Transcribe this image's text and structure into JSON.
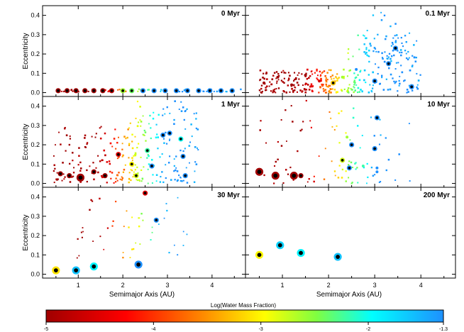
{
  "figure": {
    "ylabel": "Eccentricity",
    "xlabel": "Semimajor Axis (AU)",
    "colorbar_label": "Log(Water Mass Fraction)",
    "colorbar_ticks": [
      "-5",
      "-4",
      "-3",
      "-2",
      "-1.3"
    ],
    "colorbar_colors": [
      "#a00000",
      "#ff0000",
      "#ff7f00",
      "#ffff00",
      "#80ff40",
      "#00ffff",
      "#1e90ff"
    ]
  },
  "chart_data": [
    {
      "type": "scatter",
      "title": "0 Myr",
      "xlim": [
        0.2,
        4.75
      ],
      "ylim": [
        -0.02,
        0.45
      ],
      "xticks": [
        "1",
        "2",
        "3",
        "4"
      ],
      "yticks": [
        "0.0",
        "0.1",
        "0.2",
        "0.3",
        "0.4"
      ],
      "points": [
        {
          "a": 0.55,
          "e": 0.01,
          "s": 2,
          "w": -5
        },
        {
          "a": 0.75,
          "e": 0.01,
          "s": 2,
          "w": -5
        },
        {
          "a": 0.95,
          "e": 0.01,
          "s": 2,
          "w": -5
        },
        {
          "a": 1.15,
          "e": 0.01,
          "s": 2,
          "w": -5
        },
        {
          "a": 1.35,
          "e": 0.01,
          "s": 2,
          "w": -5
        },
        {
          "a": 1.55,
          "e": 0.01,
          "s": 2,
          "w": -5
        },
        {
          "a": 1.75,
          "e": 0.01,
          "s": 2,
          "w": -4.8
        },
        {
          "a": 2.0,
          "e": 0.01,
          "s": 2,
          "w": -2.6
        },
        {
          "a": 2.2,
          "e": 0.01,
          "s": 2,
          "w": -2.4
        },
        {
          "a": 2.45,
          "e": 0.01,
          "s": 2,
          "w": -1.3
        },
        {
          "a": 2.7,
          "e": 0.01,
          "s": 2,
          "w": -1.3
        },
        {
          "a": 2.95,
          "e": 0.01,
          "s": 2,
          "w": -1.3
        },
        {
          "a": 3.2,
          "e": 0.01,
          "s": 2,
          "w": -1.3
        },
        {
          "a": 3.45,
          "e": 0.01,
          "s": 2,
          "w": -1.3
        },
        {
          "a": 3.7,
          "e": 0.01,
          "s": 2,
          "w": -1.3
        },
        {
          "a": 3.95,
          "e": 0.01,
          "s": 2,
          "w": -1.3
        },
        {
          "a": 4.2,
          "e": 0.01,
          "s": 2,
          "w": -1.3
        },
        {
          "a": 4.45,
          "e": 0.01,
          "s": 2,
          "w": -1.3
        }
      ]
    },
    {
      "type": "scatter",
      "title": "0.1 Myr",
      "xlim": [
        0.2,
        4.75
      ],
      "ylim": [
        -0.02,
        0.45
      ],
      "xticks": [
        "1",
        "2",
        "3",
        "4"
      ],
      "yticks": [
        "0.0",
        "0.1",
        "0.2",
        "0.3",
        "0.4"
      ],
      "points": [
        {
          "a": 0.6,
          "e": 0.05,
          "s": 1,
          "w": -5
        },
        {
          "a": 0.9,
          "e": 0.08,
          "s": 1,
          "w": -5
        },
        {
          "a": 1.2,
          "e": 0.04,
          "s": 1,
          "w": -5
        },
        {
          "a": 1.5,
          "e": 0.09,
          "s": 1,
          "w": -5
        },
        {
          "a": 1.8,
          "e": 0.06,
          "s": 1,
          "w": -4.6
        },
        {
          "a": 2.1,
          "e": 0.05,
          "s": 2,
          "w": -3.2
        },
        {
          "a": 2.3,
          "e": 0.08,
          "s": 1,
          "w": -2.6
        },
        {
          "a": 2.6,
          "e": 0.12,
          "s": 1,
          "w": -1.3
        },
        {
          "a": 3.0,
          "e": 0.06,
          "s": 2,
          "w": -1.3
        },
        {
          "a": 3.3,
          "e": 0.15,
          "s": 2,
          "w": -1.3
        },
        {
          "a": 3.45,
          "e": 0.23,
          "s": 2,
          "w": -1.3
        },
        {
          "a": 3.8,
          "e": 0.03,
          "s": 2,
          "w": -1.3
        }
      ]
    },
    {
      "type": "scatter",
      "title": "1 Myr",
      "xlim": [
        0.2,
        4.75
      ],
      "ylim": [
        -0.02,
        0.45
      ],
      "xticks": [
        "1",
        "2",
        "3",
        "4"
      ],
      "yticks": [
        "0.0",
        "0.1",
        "0.2",
        "0.3",
        "0.4"
      ],
      "points": [
        {
          "a": 0.6,
          "e": 0.05,
          "s": 2,
          "w": -5
        },
        {
          "a": 0.8,
          "e": 0.04,
          "s": 2,
          "w": -5
        },
        {
          "a": 1.05,
          "e": 0.03,
          "s": 3,
          "w": -5
        },
        {
          "a": 1.35,
          "e": 0.06,
          "s": 2,
          "w": -5
        },
        {
          "a": 1.6,
          "e": 0.04,
          "s": 2,
          "w": -5
        },
        {
          "a": 1.9,
          "e": 0.15,
          "s": 2,
          "w": -4.5
        },
        {
          "a": 2.2,
          "e": 0.1,
          "s": 2,
          "w": -3.0
        },
        {
          "a": 2.3,
          "e": 0.04,
          "s": 2,
          "w": -2.8
        },
        {
          "a": 2.55,
          "e": 0.17,
          "s": 2,
          "w": -2.2
        },
        {
          "a": 2.65,
          "e": 0.09,
          "s": 2,
          "w": -1.3
        },
        {
          "a": 2.9,
          "e": 0.25,
          "s": 2,
          "w": -1.3
        },
        {
          "a": 3.05,
          "e": 0.26,
          "s": 2,
          "w": -1.3
        },
        {
          "a": 3.3,
          "e": 0.23,
          "s": 2,
          "w": -2.0
        },
        {
          "a": 3.35,
          "e": 0.14,
          "s": 2,
          "w": -1.3
        },
        {
          "a": 3.4,
          "e": 0.04,
          "s": 2,
          "w": -1.3
        }
      ]
    },
    {
      "type": "scatter",
      "title": "10 Myr",
      "xlim": [
        0.2,
        4.75
      ],
      "ylim": [
        -0.02,
        0.45
      ],
      "xticks": [
        "1",
        "2",
        "3",
        "4"
      ],
      "yticks": [
        "0.0",
        "0.1",
        "0.2",
        "0.3",
        "0.4"
      ],
      "points": [
        {
          "a": 0.5,
          "e": 0.06,
          "s": 3,
          "w": -5
        },
        {
          "a": 0.85,
          "e": 0.04,
          "s": 3,
          "w": -5
        },
        {
          "a": 1.25,
          "e": 0.04,
          "s": 3,
          "w": -5
        },
        {
          "a": 1.4,
          "e": 0.04,
          "s": 2,
          "w": -5
        },
        {
          "a": 2.3,
          "e": 0.12,
          "s": 2,
          "w": -2.8
        },
        {
          "a": 2.4,
          "e": 0.24,
          "s": 1,
          "w": -2.6
        },
        {
          "a": 2.45,
          "e": 0.08,
          "s": 2,
          "w": -1.3
        },
        {
          "a": 2.5,
          "e": 0.2,
          "s": 2,
          "w": -1.3
        },
        {
          "a": 2.75,
          "e": 0.09,
          "s": 1,
          "w": -2.2
        },
        {
          "a": 3.0,
          "e": 0.18,
          "s": 2,
          "w": -1.3
        },
        {
          "a": 3.05,
          "e": 0.34,
          "s": 2,
          "w": -1.3
        },
        {
          "a": 3.05,
          "e": 0.08,
          "s": 1,
          "w": -1.3
        },
        {
          "a": 3.05,
          "e": 0.06,
          "s": 1,
          "w": -1.3
        }
      ]
    },
    {
      "type": "scatter",
      "title": "30 Myr",
      "xlim": [
        0.2,
        4.75
      ],
      "ylim": [
        -0.02,
        0.45
      ],
      "xticks": [
        "1",
        "2",
        "3",
        "4"
      ],
      "yticks": [
        "0.0",
        "0.1",
        "0.2",
        "0.3",
        "0.4"
      ],
      "points": [
        {
          "a": 0.5,
          "e": 0.02,
          "s": 3,
          "w": -3.1
        },
        {
          "a": 0.95,
          "e": 0.02,
          "s": 3,
          "w": -1.6
        },
        {
          "a": 1.35,
          "e": 0.04,
          "s": 3,
          "w": -1.9
        },
        {
          "a": 2.35,
          "e": 0.05,
          "s": 3,
          "w": -1.3
        },
        {
          "a": 2.5,
          "e": 0.42,
          "s": 2,
          "w": -4.5
        },
        {
          "a": 2.75,
          "e": 0.28,
          "s": 2,
          "w": -1.3
        }
      ]
    },
    {
      "type": "scatter",
      "title": "200 Myr",
      "xlim": [
        0.2,
        4.75
      ],
      "ylim": [
        -0.02,
        0.45
      ],
      "xticks": [
        "1",
        "2",
        "3",
        "4"
      ],
      "yticks": [
        "0.0",
        "0.1",
        "0.2",
        "0.3",
        "0.4"
      ],
      "points": [
        {
          "a": 0.5,
          "e": 0.1,
          "s": 3,
          "w": -3.0
        },
        {
          "a": 0.95,
          "e": 0.15,
          "s": 3,
          "w": -1.7
        },
        {
          "a": 1.4,
          "e": 0.11,
          "s": 3,
          "w": -1.9
        },
        {
          "a": 2.2,
          "e": 0.09,
          "s": 3,
          "w": -1.6
        }
      ]
    }
  ]
}
